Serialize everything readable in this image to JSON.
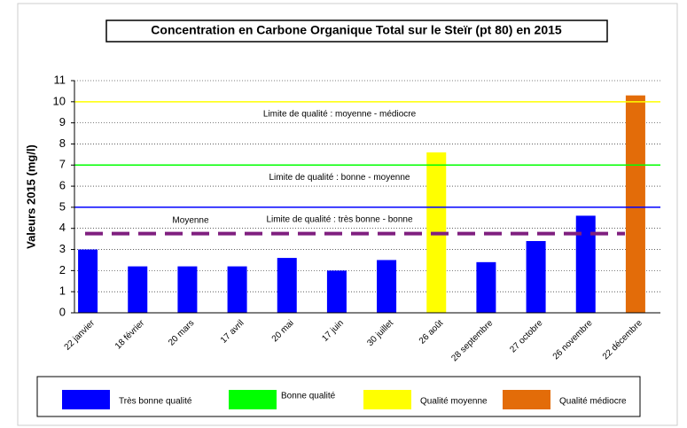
{
  "chart_data": {
    "type": "bar",
    "title": "Concentration en Carbone Organique Total sur le Steïr (pt 80) en 2015",
    "y_label": "Valeurs 2015 (mg/l)",
    "categories": [
      "22 janvier",
      "18 février",
      "20 mars",
      "17 avril",
      "20 mai",
      "17 juin",
      "30 juillet",
      "26 août",
      "28 septembre",
      "27 octobre",
      "26 novembre",
      "22 décembre"
    ],
    "values": [
      3.0,
      2.2,
      2.2,
      2.2,
      2.6,
      2.0,
      2.5,
      7.6,
      2.4,
      3.4,
      4.6,
      10.3
    ],
    "colors": [
      "#0000ff",
      "#0000ff",
      "#0000ff",
      "#0000ff",
      "#0000ff",
      "#0000ff",
      "#0000ff",
      "#ffff00",
      "#0000ff",
      "#0000ff",
      "#0000ff",
      "#e36c09"
    ],
    "ylim": [
      0,
      11
    ],
    "yticks": [
      0,
      1,
      2,
      3,
      4,
      5,
      6,
      7,
      8,
      9,
      10,
      11
    ],
    "grid": true,
    "reference_lines": [
      {
        "value": 10,
        "label": "Limite de qualité : moyenne - médiocre",
        "color": "#ffff00"
      },
      {
        "value": 7,
        "label": "Limite de qualité : bonne - moyenne",
        "color": "#00ff00"
      },
      {
        "value": 5,
        "label": "Limite de qualité : très bonne - bonne",
        "color": "#0000ff"
      }
    ],
    "mean_line": {
      "value": 3.75,
      "label": "Moyenne",
      "color": "#7f1f7f"
    },
    "legend": [
      {
        "name": "Très bonne qualité",
        "color": "#0000ff"
      },
      {
        "name": "Bonne qualité",
        "color": "#00ff00"
      },
      {
        "name": "Qualité  moyenne",
        "color": "#ffff00"
      },
      {
        "name": "Qualité médiocre",
        "color": "#e36c09"
      }
    ]
  }
}
